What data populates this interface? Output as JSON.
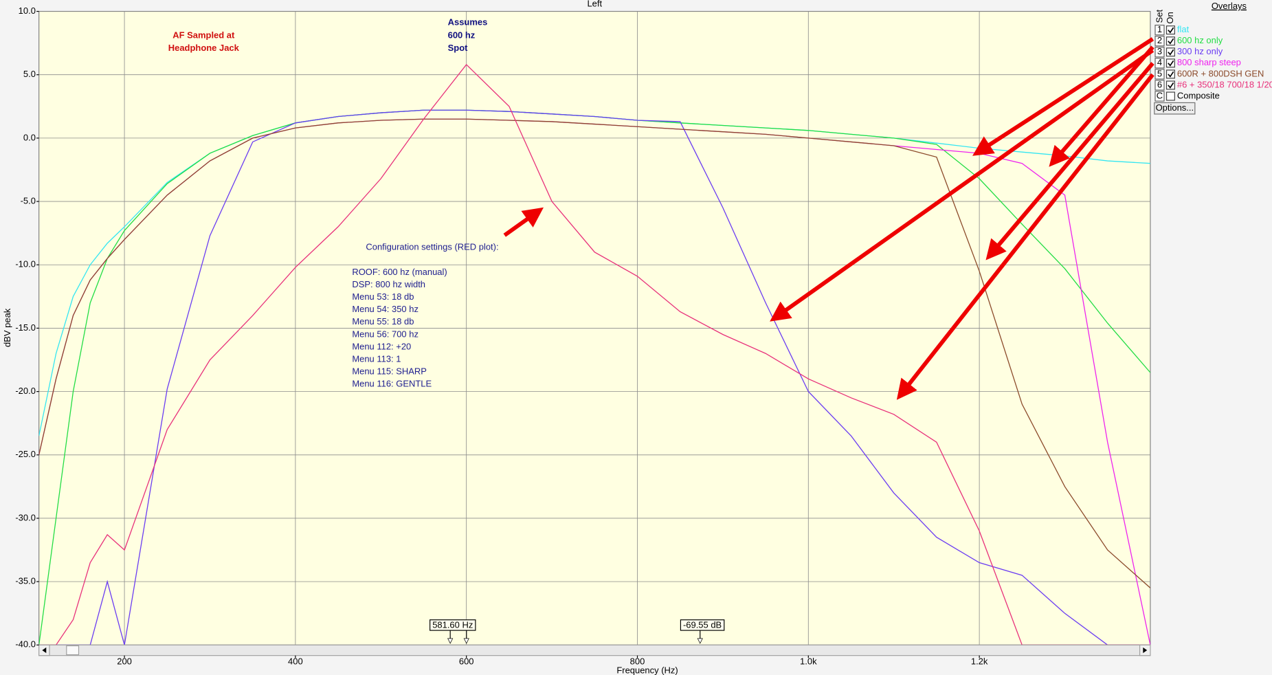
{
  "chart_data": {
    "type": "line",
    "title": "Left",
    "x_label": "Frequency (Hz)",
    "y_label": "dBV peak",
    "xlim": [
      100,
      1400
    ],
    "ylim": [
      -40,
      10
    ],
    "xticks": [
      200,
      400,
      600,
      800,
      {
        "value": 1000,
        "label": "1.0k"
      },
      {
        "value": 1200,
        "label": "1.2k"
      }
    ],
    "yticks": [
      {
        "value": 10,
        "label": "10.0"
      },
      {
        "value": 5,
        "label": "5.0"
      },
      {
        "value": 0,
        "label": "0.0"
      },
      {
        "value": -5,
        "label": "-5.0"
      },
      {
        "value": -10,
        "label": "-10.0"
      },
      {
        "value": -15,
        "label": "-15.0"
      },
      {
        "value": -20,
        "label": "-20.0"
      },
      {
        "value": -25,
        "label": "-25.0"
      },
      {
        "value": -30,
        "label": "-30.0"
      },
      {
        "value": -35,
        "label": "-35.0"
      },
      {
        "value": -40,
        "label": "-40.0"
      }
    ],
    "grid": true,
    "x": [
      100,
      120,
      140,
      160,
      180,
      200,
      250,
      300,
      350,
      400,
      450,
      500,
      550,
      600,
      650,
      700,
      750,
      800,
      850,
      900,
      950,
      1000,
      1050,
      1100,
      1150,
      1200,
      1250,
      1300,
      1350,
      1400
    ],
    "series": [
      {
        "name": "flat",
        "color": "#33e6f2",
        "values": [
          -23.5,
          -17,
          -12.5,
          -10,
          -8.3,
          -7,
          -3.5,
          -1.2,
          0.2,
          1.2,
          1.7,
          2.0,
          2.2,
          2.2,
          2.1,
          1.9,
          1.7,
          1.4,
          1.2,
          1.0,
          0.8,
          0.6,
          0.3,
          0.0,
          -0.4,
          -0.8,
          -1.1,
          -1.4,
          -1.8,
          -2.0
        ]
      },
      {
        "name": "600 hz only",
        "color": "#22dd44",
        "values": [
          -40,
          -30,
          -20,
          -13,
          -9.5,
          -7.3,
          -3.6,
          -1.2,
          0.2,
          1.2,
          1.7,
          2.0,
          2.2,
          2.2,
          2.1,
          1.9,
          1.7,
          1.4,
          1.2,
          1.0,
          0.8,
          0.6,
          0.3,
          0.0,
          -0.5,
          -3.2,
          -6.8,
          -10.3,
          -14.6,
          -18.5
        ]
      },
      {
        "name": "300 hz only",
        "color": "#6a3cf2",
        "values": [
          -40,
          -40,
          -40,
          -40,
          -35,
          -40,
          -19.8,
          -7.7,
          -0.3,
          1.2,
          1.7,
          2.0,
          2.2,
          2.2,
          2.1,
          1.9,
          1.7,
          1.4,
          1.3,
          -5.5,
          -13,
          -20,
          -23.5,
          -28,
          -31.5,
          -33.5,
          -34.5,
          -37.5,
          -40,
          -40
        ]
      },
      {
        "name": "800 sharp steep",
        "color": "#ee22ee",
        "values": [
          -25,
          -19,
          -14,
          -11.2,
          -9.5,
          -8,
          -4.5,
          -1.8,
          0,
          0.8,
          1.2,
          1.4,
          1.5,
          1.5,
          1.4,
          1.3,
          1.1,
          0.9,
          0.7,
          0.5,
          0.3,
          0,
          -0.3,
          -0.6,
          -0.9,
          -1.2,
          -2.0,
          -4.5,
          -24,
          -40
        ]
      },
      {
        "name": "600R + 800DSH GEN",
        "color": "#8b4a2a",
        "values": [
          -25,
          -19,
          -14,
          -11.2,
          -9.5,
          -8,
          -4.5,
          -1.8,
          0,
          0.8,
          1.2,
          1.4,
          1.5,
          1.5,
          1.4,
          1.3,
          1.1,
          0.9,
          0.7,
          0.5,
          0.3,
          0,
          -0.3,
          -0.6,
          -1.5,
          -10.5,
          -21,
          -27.5,
          -32.5,
          -35.5
        ]
      },
      {
        "name": "#6 + 350/18 700/18 1/20",
        "color": "#e8307a",
        "values": [
          -40,
          -40,
          -38,
          -33.5,
          -31.3,
          -32.5,
          -23,
          -17.5,
          -14,
          -10.2,
          -7,
          -3.2,
          1.5,
          5.8,
          2.5,
          -5,
          -9,
          -10.9,
          -13.7,
          -15.5,
          -17,
          -19,
          -20.5,
          -21.8,
          -24,
          -31,
          -40,
          -40,
          -40,
          -40
        ]
      }
    ],
    "annotations": [
      {
        "color": "#d01010",
        "lines": [
          "AF Sampled at",
          "Headphone Jack"
        ]
      },
      {
        "color": "#101080",
        "lines": [
          "Assumes",
          "600 hz",
          "Spot"
        ]
      },
      {
        "color": "#202090",
        "lines": [
          "Configuration settings (RED plot):"
        ]
      },
      {
        "color": "#202090",
        "lines": [
          "ROOF:  600 hz (manual)",
          "DSP:  800 hz width",
          "Menu 53: 18 db",
          "Menu 54: 350 hz",
          "Menu 55: 18 db",
          "Menu 56: 700 hz",
          "Menu 112: +20",
          "Menu 113: 1",
          "Menu 115: SHARP",
          "Menu 116: GENTLE"
        ]
      }
    ],
    "cursor_labels": [
      "581.60 Hz",
      "-69.55 dB"
    ],
    "overlays": {
      "title": "Overlays",
      "set_label": "Set",
      "on_label": "On",
      "sets": [
        "1",
        "2",
        "3",
        "4",
        "5",
        "6"
      ],
      "composite_set": "C",
      "composite": "Composite",
      "options": "Options..."
    }
  }
}
